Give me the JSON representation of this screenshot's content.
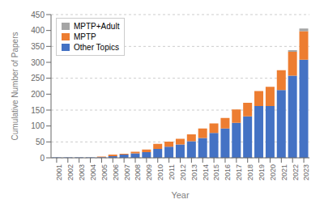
{
  "chart_data": {
    "type": "bar",
    "stacked": true,
    "xlabel": "Year",
    "ylabel": "Cumulative Number of Papers",
    "categories": [
      "2001",
      "2002",
      "2003",
      "2004",
      "2005",
      "2006",
      "2007",
      "2008",
      "2009",
      "2010",
      "2011",
      "2012",
      "2013",
      "2014",
      "2015",
      "2016",
      "2017",
      "2018",
      "2019",
      "2020",
      "2021",
      "2022",
      "2023"
    ],
    "series": [
      {
        "name": "Other Topics",
        "color": "#4472C4",
        "values": [
          1,
          1,
          1,
          1,
          2,
          5,
          10,
          14,
          18,
          28,
          35,
          42,
          52,
          62,
          78,
          92,
          110,
          130,
          163,
          163,
          213,
          258,
          308
        ]
      },
      {
        "name": "MPTP",
        "color": "#ED7D31",
        "values": [
          0,
          0,
          0,
          0,
          2,
          5,
          3,
          5,
          8,
          16,
          16,
          18,
          22,
          30,
          30,
          33,
          42,
          43,
          47,
          60,
          62,
          75,
          90
        ]
      },
      {
        "name": "MPTP+Adult",
        "color": "#A5A5A5",
        "values": [
          0,
          0,
          0,
          0,
          0,
          0,
          0,
          0,
          0,
          0,
          0,
          0,
          0,
          0,
          0,
          0,
          0,
          0,
          0,
          0,
          0,
          5,
          8
        ]
      }
    ],
    "ylim": [
      0,
      450
    ],
    "yticks": [
      0,
      50,
      100,
      150,
      200,
      250,
      300,
      350,
      400,
      450
    ],
    "grid": true,
    "legend": "upper left"
  }
}
